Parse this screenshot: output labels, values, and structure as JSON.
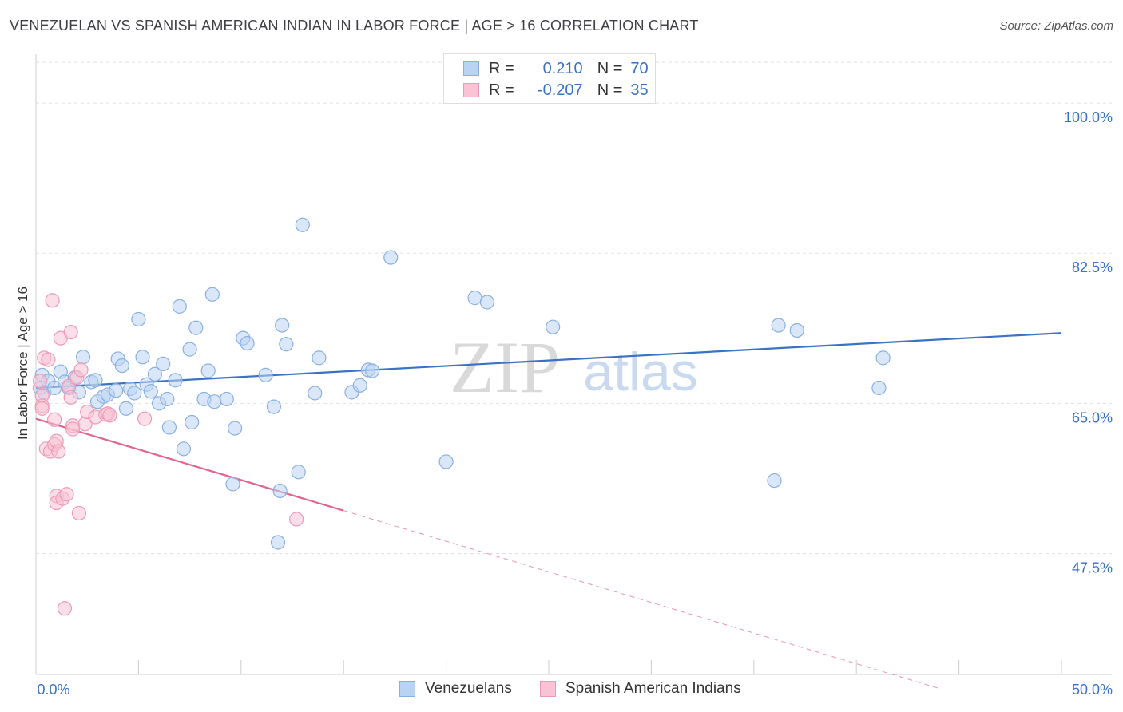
{
  "header": {
    "title": "VENEZUELAN VS SPANISH AMERICAN INDIAN IN LABOR FORCE | AGE > 16 CORRELATION CHART",
    "source": "Source: ZipAtlas.com"
  },
  "legend": {
    "rows": [
      {
        "r_label": "R =",
        "r_value": "0.210",
        "n_label": "N =",
        "n_value": "70"
      },
      {
        "r_label": "R =",
        "r_value": "-0.207",
        "n_label": "N =",
        "n_value": "35"
      }
    ]
  },
  "watermark": {
    "zip": "ZIP",
    "atlas": "atlas"
  },
  "colors": {
    "blue": "#3a72c4",
    "blue_fill": "#b9d3f2",
    "blue_stroke": "#8ab0e0",
    "pink": "#e06690",
    "pink_fill": "#f8c3d4",
    "pink_stroke": "#ee9ab6",
    "grid": "#e2e2e2",
    "tick_label": "#3a72c4"
  },
  "chart_data": {
    "type": "scatter",
    "title": "VENEZUELAN VS SPANISH AMERICAN INDIAN IN LABOR FORCE | AGE > 16 CORRELATION CHART",
    "xlabel": "",
    "ylabel": "In Labor Force | Age > 16",
    "xlim": [
      0,
      50
    ],
    "ylim": [
      33.4,
      105.5
    ],
    "x_tick_labels": [
      "0.0%",
      "50.0%"
    ],
    "y_ticks": [
      47.5,
      65.0,
      82.5,
      100.0
    ],
    "y_tick_labels": [
      "47.5%",
      "65.0%",
      "82.5%",
      "100.0%"
    ],
    "grid": true,
    "legend_position": "top-center",
    "series": [
      {
        "name": "Venezuelans",
        "color": "blue",
        "R": 0.21,
        "N": 70,
        "trend": {
          "x0": 0,
          "y0": 66.8,
          "x1": 50,
          "y1": 73.2
        },
        "points": [
          [
            0.2,
            66.8
          ],
          [
            0.3,
            68.3
          ],
          [
            0.4,
            66.3
          ],
          [
            0.6,
            67.6
          ],
          [
            0.9,
            66.8
          ],
          [
            1.2,
            68.7
          ],
          [
            1.4,
            67.5
          ],
          [
            1.6,
            66.8
          ],
          [
            1.9,
            68.0
          ],
          [
            2.1,
            66.3
          ],
          [
            2.3,
            70.4
          ],
          [
            2.7,
            67.5
          ],
          [
            2.9,
            67.7
          ],
          [
            3.0,
            65.2
          ],
          [
            3.3,
            65.8
          ],
          [
            3.5,
            66.0
          ],
          [
            3.9,
            66.5
          ],
          [
            4.0,
            70.2
          ],
          [
            4.2,
            69.4
          ],
          [
            4.4,
            64.4
          ],
          [
            4.6,
            66.7
          ],
          [
            4.8,
            66.2
          ],
          [
            5.0,
            74.8
          ],
          [
            5.2,
            70.4
          ],
          [
            5.4,
            67.2
          ],
          [
            5.6,
            66.4
          ],
          [
            5.8,
            68.4
          ],
          [
            6.0,
            65.0
          ],
          [
            6.2,
            69.6
          ],
          [
            6.4,
            65.5
          ],
          [
            6.5,
            62.2
          ],
          [
            6.8,
            67.7
          ],
          [
            7.0,
            76.3
          ],
          [
            7.2,
            59.7
          ],
          [
            7.5,
            71.3
          ],
          [
            7.6,
            62.8
          ],
          [
            7.8,
            73.8
          ],
          [
            8.2,
            65.5
          ],
          [
            8.4,
            68.8
          ],
          [
            8.6,
            77.7
          ],
          [
            8.7,
            65.2
          ],
          [
            9.3,
            65.5
          ],
          [
            9.6,
            55.6
          ],
          [
            9.7,
            62.1
          ],
          [
            10.1,
            72.6
          ],
          [
            10.3,
            72.0
          ],
          [
            11.2,
            68.3
          ],
          [
            11.6,
            64.6
          ],
          [
            11.9,
            54.8
          ],
          [
            11.8,
            48.8
          ],
          [
            12.0,
            74.1
          ],
          [
            12.2,
            71.9
          ],
          [
            12.8,
            57.0
          ],
          [
            13.0,
            85.8
          ],
          [
            13.6,
            66.2
          ],
          [
            13.8,
            70.3
          ],
          [
            15.4,
            66.3
          ],
          [
            15.8,
            67.1
          ],
          [
            16.2,
            68.9
          ],
          [
            16.4,
            68.8
          ],
          [
            17.3,
            82.0
          ],
          [
            20.0,
            58.2
          ],
          [
            21.4,
            77.3
          ],
          [
            22.0,
            76.8
          ],
          [
            25.2,
            73.9
          ],
          [
            36.2,
            74.1
          ],
          [
            37.1,
            73.5
          ],
          [
            41.1,
            66.8
          ],
          [
            41.3,
            70.3
          ],
          [
            36.0,
            56.0
          ]
        ]
      },
      {
        "name": "Spanish American Indians",
        "color": "pink",
        "R": -0.207,
        "N": 35,
        "trend": {
          "x0": 0,
          "y0": 63.2,
          "x1": 15.0,
          "y1": 52.5
        },
        "trend_extension": {
          "x0": 15.0,
          "y0": 52.5,
          "x1": 44.0,
          "y1": 31.8
        },
        "points": [
          [
            0.2,
            67.6
          ],
          [
            0.3,
            65.9
          ],
          [
            0.3,
            64.7
          ],
          [
            0.3,
            64.4
          ],
          [
            0.4,
            70.3
          ],
          [
            0.5,
            59.7
          ],
          [
            0.6,
            70.1
          ],
          [
            0.7,
            59.4
          ],
          [
            0.8,
            77.0
          ],
          [
            0.9,
            63.1
          ],
          [
            0.9,
            60.2
          ],
          [
            1.0,
            60.6
          ],
          [
            1.0,
            54.2
          ],
          [
            1.0,
            53.4
          ],
          [
            1.1,
            59.4
          ],
          [
            1.2,
            72.6
          ],
          [
            1.3,
            53.9
          ],
          [
            1.5,
            54.4
          ],
          [
            1.6,
            67.0
          ],
          [
            1.7,
            65.7
          ],
          [
            1.7,
            73.3
          ],
          [
            1.8,
            62.4
          ],
          [
            1.8,
            62.0
          ],
          [
            2.0,
            68.0
          ],
          [
            2.1,
            52.2
          ],
          [
            2.2,
            68.9
          ],
          [
            2.4,
            62.6
          ],
          [
            2.5,
            64.0
          ],
          [
            2.9,
            63.4
          ],
          [
            3.4,
            63.7
          ],
          [
            3.5,
            63.8
          ],
          [
            3.6,
            63.6
          ],
          [
            5.3,
            63.2
          ],
          [
            12.7,
            51.5
          ],
          [
            1.4,
            41.1
          ]
        ]
      }
    ]
  },
  "bottom_legend": {
    "items": [
      "Venezuelans",
      "Spanish American Indians"
    ]
  }
}
